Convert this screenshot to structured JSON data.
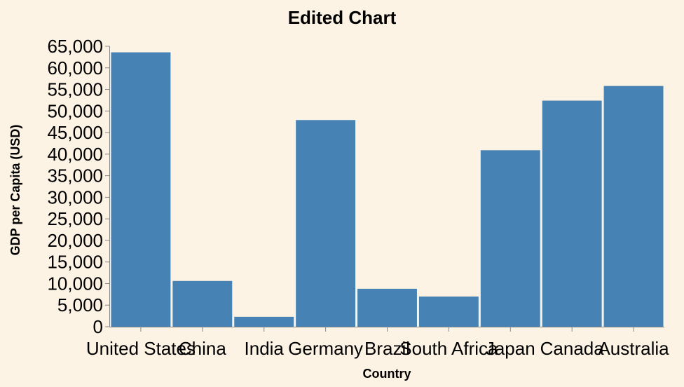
{
  "chart_data": {
    "type": "bar",
    "title": "Edited Chart",
    "xlabel": "Country",
    "ylabel": "GDP per Capita (USD)",
    "categories": [
      "United States",
      "China",
      "India",
      "Germany",
      "Brazil",
      "South Africa",
      "Japan",
      "Canada",
      "Australia"
    ],
    "values": [
      63600,
      10600,
      2300,
      47900,
      8800,
      7000,
      40900,
      52400,
      55800
    ],
    "ylim": [
      0,
      65000
    ],
    "yticks": [
      0,
      5000,
      10000,
      15000,
      20000,
      25000,
      30000,
      35000,
      40000,
      45000,
      50000,
      55000,
      60000,
      65000
    ],
    "ytick_labels": [
      "0",
      "5,000",
      "10,000",
      "15,000",
      "20,000",
      "25,000",
      "30,000",
      "35,000",
      "40,000",
      "45,000",
      "50,000",
      "55,000",
      "60,000",
      "65,000"
    ],
    "bar_color": "#4682b4",
    "background": "#fdf3e5",
    "grid": false,
    "legend": "none"
  }
}
